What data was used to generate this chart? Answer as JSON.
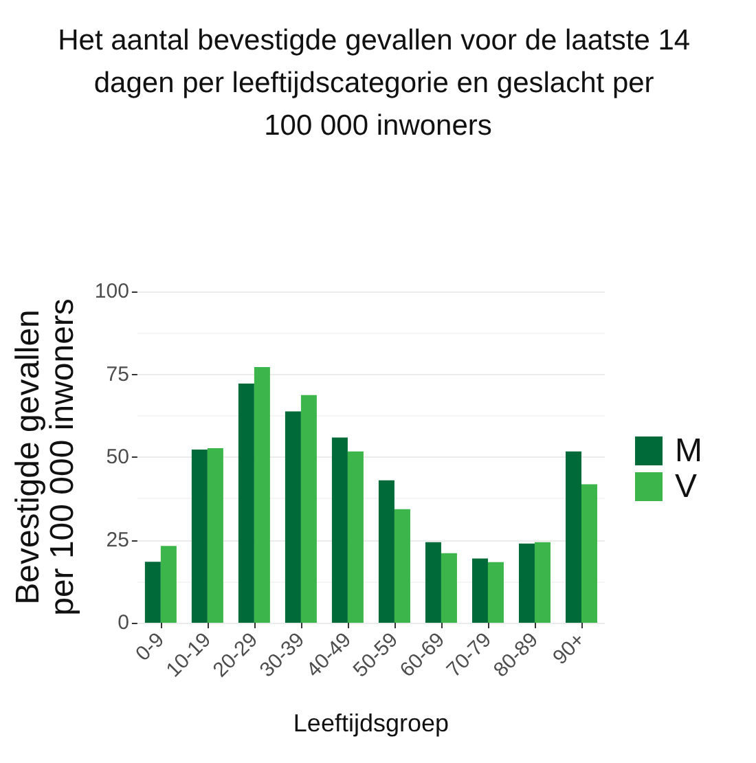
{
  "chart_data": {
    "type": "bar",
    "title": "Het aantal bevestigde gevallen voor de laatste 14 dagen per leeftijdscategorie en geslacht per 100 000 inwoners",
    "xlabel": "Leeftijdsgroep",
    "ylabel": "Bevestigde gevallen per 100 000 inwoners",
    "categories": [
      "0-9",
      "10-19",
      "20-29",
      "30-39",
      "40-49",
      "50-59",
      "60-69",
      "70-79",
      "80-89",
      "90+"
    ],
    "series": [
      {
        "name": "M",
        "color": "#006b38",
        "values": [
          18.4,
          52.3,
          72.2,
          63.8,
          55.9,
          43.0,
          24.3,
          19.4,
          23.9,
          51.7
        ]
      },
      {
        "name": "V",
        "color": "#3cb54a",
        "values": [
          23.2,
          52.7,
          77.2,
          68.7,
          51.7,
          34.3,
          21.0,
          18.3,
          24.3,
          41.8
        ]
      }
    ],
    "ylim": [
      0,
      100
    ],
    "yticks": [
      0,
      25,
      50,
      75,
      100
    ],
    "grid": "y",
    "legend": "right"
  }
}
